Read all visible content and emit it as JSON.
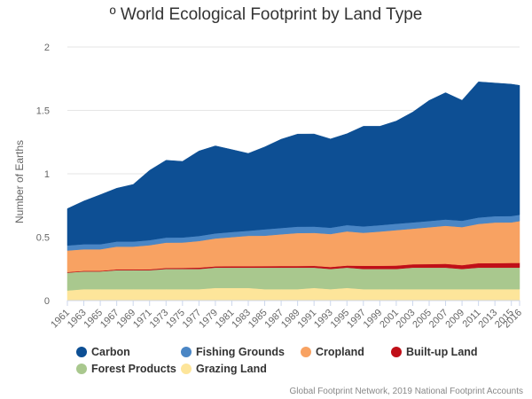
{
  "chart_data": {
    "type": "area",
    "stacked": true,
    "title": "º World Ecological Footprint by Land Type",
    "ylabel": "Number of Earths",
    "xlabel": "",
    "ylim": [
      0,
      2
    ],
    "yticks": [
      0,
      0.5,
      1,
      1.5,
      2
    ],
    "ytick_labels": [
      "0",
      "0.5",
      "1",
      "1.5",
      "2"
    ],
    "xlim": [
      1961,
      2016
    ],
    "xticks": [
      1961,
      1963,
      1965,
      1967,
      1969,
      1971,
      1973,
      1975,
      1977,
      1979,
      1981,
      1983,
      1985,
      1987,
      1989,
      1991,
      1993,
      1995,
      1997,
      1999,
      2001,
      2003,
      2005,
      2007,
      2009,
      2011,
      2013,
      2015,
      2016
    ],
    "grid": "horizontal",
    "legend_position": "bottom",
    "credits": "Global Footprint Network, 2019 National Footprint Accounts",
    "keyframes": [
      1961,
      1963,
      1965,
      1967,
      1969,
      1971,
      1973,
      1975,
      1977,
      1979,
      1981,
      1983,
      1985,
      1987,
      1989,
      1991,
      1993,
      1995,
      1997,
      1999,
      2001,
      2003,
      2005,
      2007,
      2009,
      2011,
      2013,
      2015,
      2016
    ],
    "series": [
      {
        "name": "Grazing Land",
        "color": "#fde59a",
        "values": [
          0.08,
          0.09,
          0.09,
          0.09,
          0.09,
          0.09,
          0.09,
          0.09,
          0.09,
          0.1,
          0.1,
          0.1,
          0.09,
          0.09,
          0.09,
          0.1,
          0.09,
          0.1,
          0.09,
          0.09,
          0.09,
          0.09,
          0.09,
          0.09,
          0.09,
          0.09,
          0.09,
          0.09,
          0.09
        ]
      },
      {
        "name": "Forest Products",
        "color": "#a9c88e",
        "values": [
          0.14,
          0.14,
          0.14,
          0.15,
          0.15,
          0.15,
          0.16,
          0.16,
          0.16,
          0.16,
          0.16,
          0.16,
          0.17,
          0.17,
          0.17,
          0.16,
          0.16,
          0.16,
          0.16,
          0.16,
          0.16,
          0.17,
          0.17,
          0.17,
          0.16,
          0.17,
          0.17,
          0.17,
          0.17
        ]
      },
      {
        "name": "Built-up Land",
        "color": "#c00f18",
        "values": [
          0.005,
          0.005,
          0.005,
          0.006,
          0.006,
          0.007,
          0.007,
          0.008,
          0.01,
          0.01,
          0.011,
          0.011,
          0.012,
          0.013,
          0.013,
          0.014,
          0.015,
          0.016,
          0.025,
          0.025,
          0.026,
          0.027,
          0.028,
          0.03,
          0.03,
          0.035,
          0.036,
          0.037,
          0.037
        ]
      },
      {
        "name": "Cropland",
        "color": "#f8a262",
        "values": [
          0.17,
          0.17,
          0.17,
          0.18,
          0.18,
          0.19,
          0.2,
          0.2,
          0.21,
          0.22,
          0.23,
          0.24,
          0.24,
          0.25,
          0.26,
          0.26,
          0.26,
          0.27,
          0.26,
          0.27,
          0.28,
          0.28,
          0.29,
          0.3,
          0.3,
          0.31,
          0.32,
          0.32,
          0.33
        ]
      },
      {
        "name": "Fishing Grounds",
        "color": "#4a86c5",
        "values": [
          0.04,
          0.04,
          0.04,
          0.04,
          0.04,
          0.04,
          0.04,
          0.04,
          0.04,
          0.04,
          0.04,
          0.04,
          0.05,
          0.05,
          0.05,
          0.05,
          0.05,
          0.05,
          0.05,
          0.05,
          0.05,
          0.05,
          0.05,
          0.05,
          0.05,
          0.05,
          0.05,
          0.05,
          0.05
        ]
      },
      {
        "name": "Carbon",
        "color": "#0d4f94",
        "values": [
          0.29,
          0.34,
          0.39,
          0.42,
          0.45,
          0.55,
          0.61,
          0.6,
          0.67,
          0.69,
          0.65,
          0.61,
          0.65,
          0.7,
          0.73,
          0.73,
          0.7,
          0.72,
          0.79,
          0.78,
          0.81,
          0.87,
          0.95,
          1.0,
          0.95,
          1.07,
          1.05,
          1.04,
          1.02
        ]
      }
    ],
    "legend": [
      {
        "name": "Carbon",
        "color": "#0d4f94"
      },
      {
        "name": "Fishing Grounds",
        "color": "#4a86c5"
      },
      {
        "name": "Cropland",
        "color": "#f8a262"
      },
      {
        "name": "Built-up Land",
        "color": "#c00f18"
      },
      {
        "name": "Forest Products",
        "color": "#a9c88e"
      },
      {
        "name": "Grazing Land",
        "color": "#fde59a"
      }
    ]
  }
}
